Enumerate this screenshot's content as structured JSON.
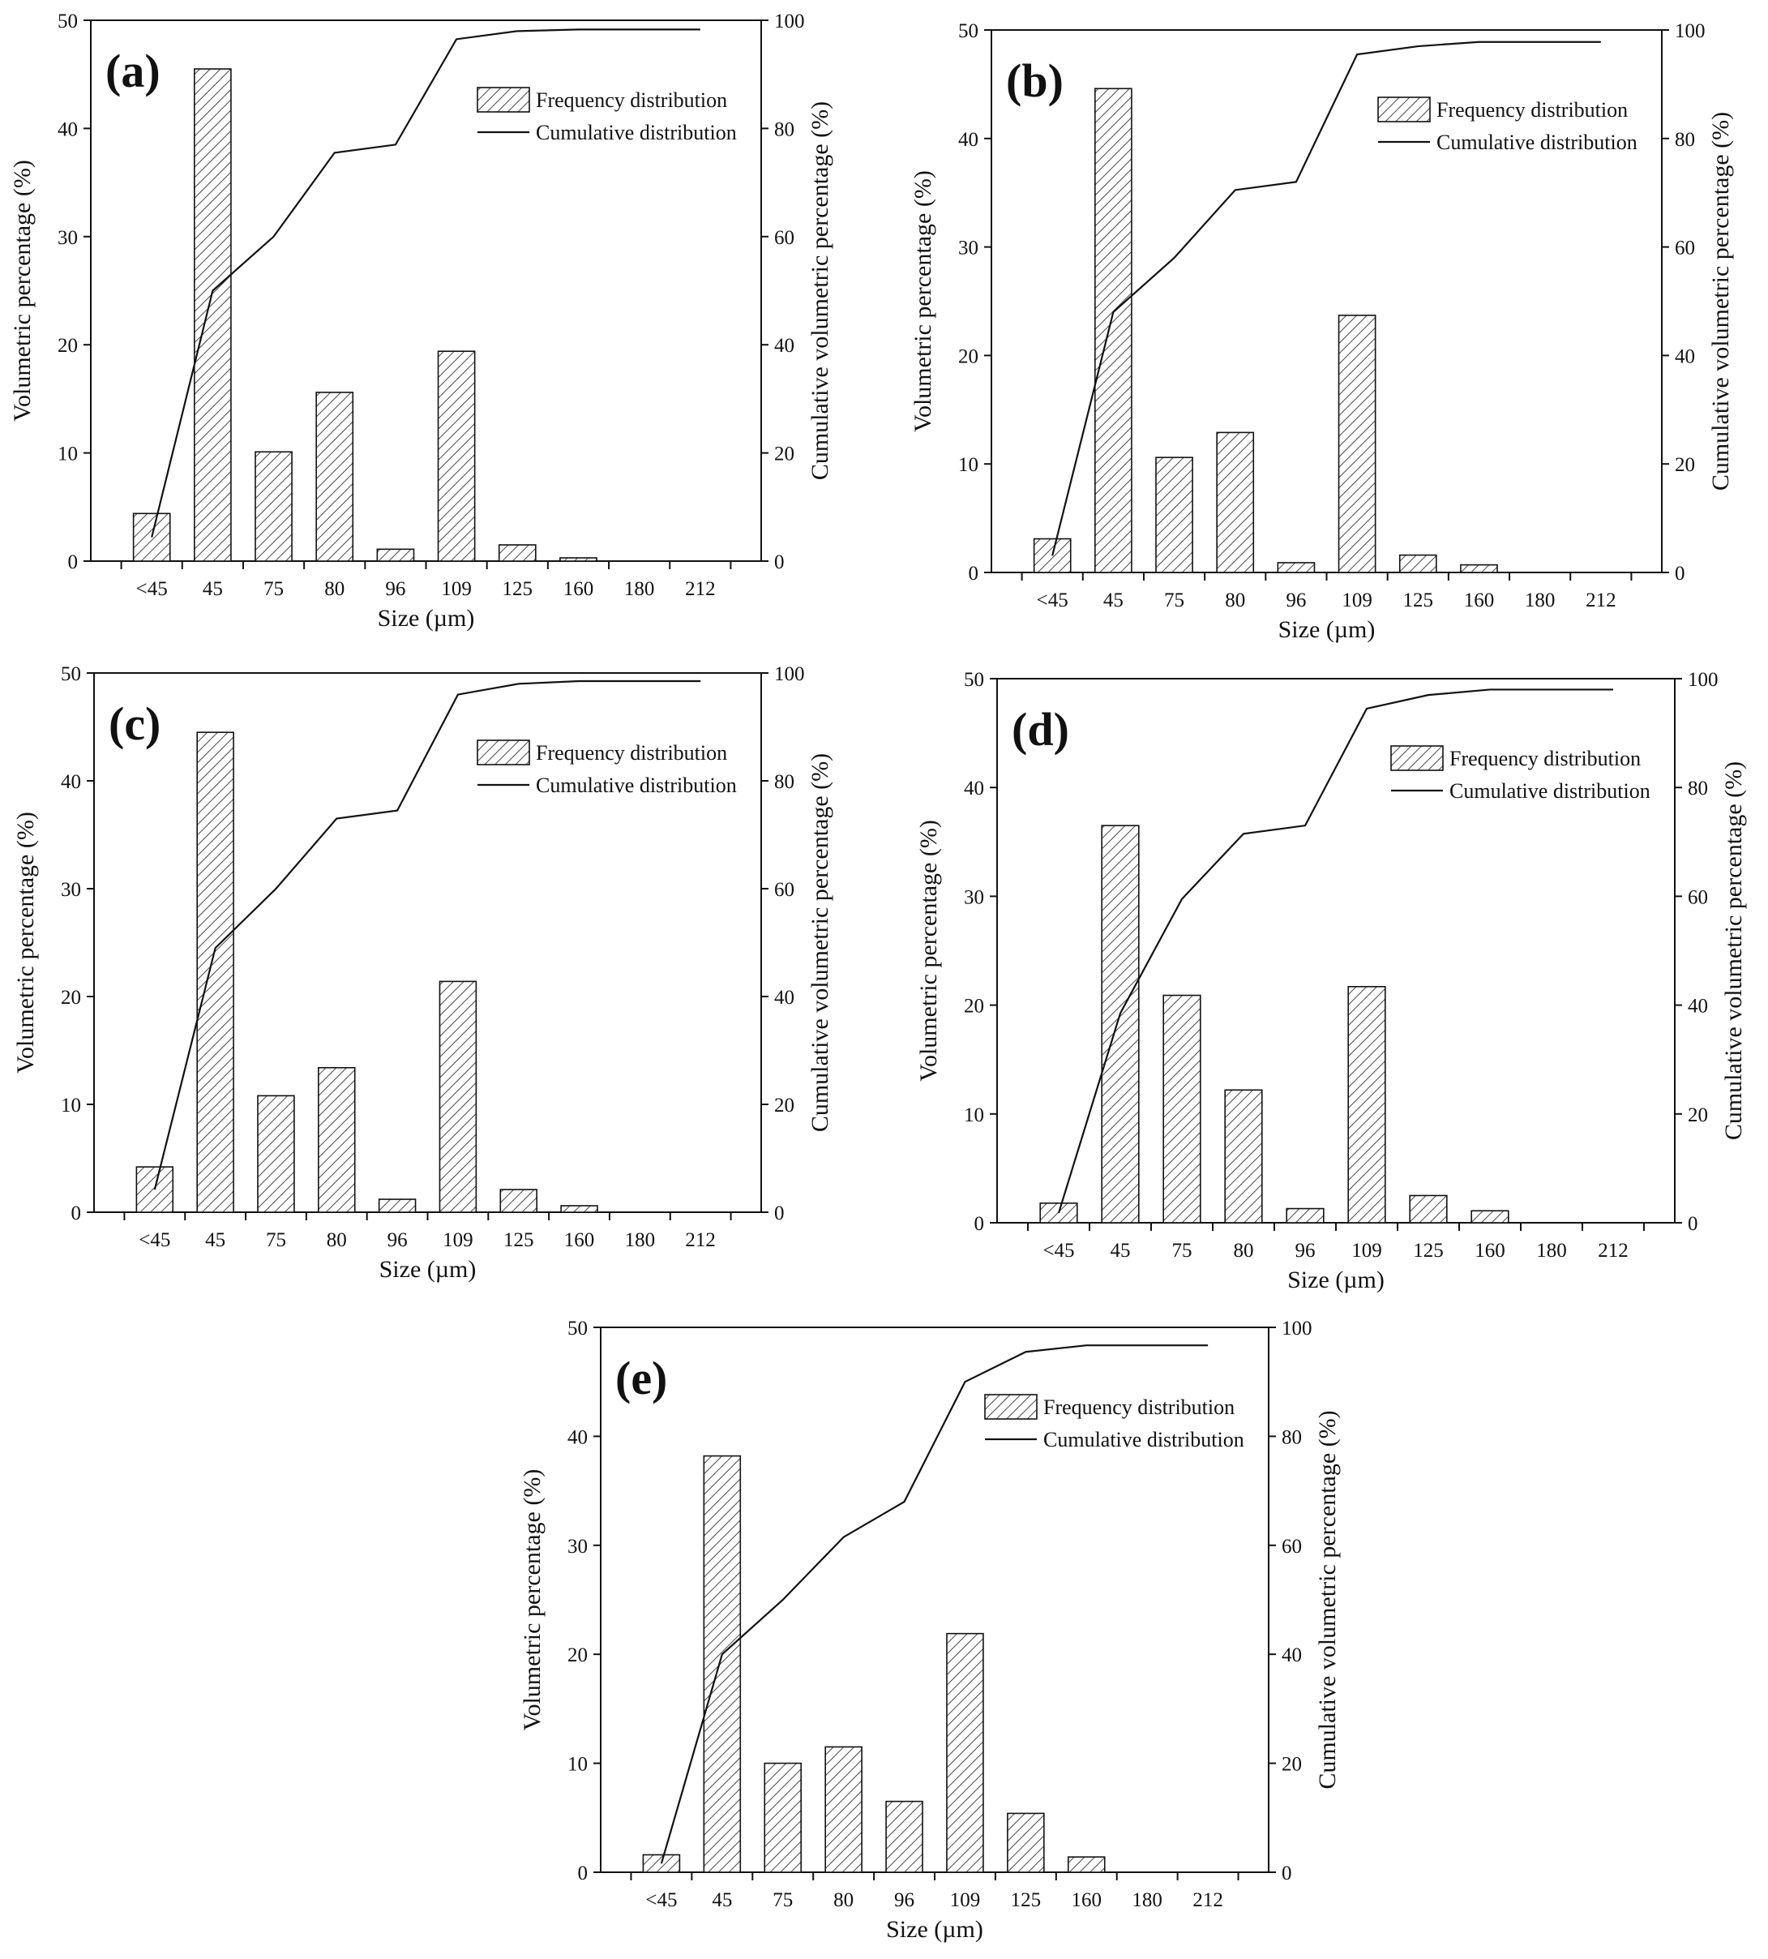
{
  "figure": {
    "bar_series_name": "Frequency distribution",
    "line_series_name": "Cumulative distribution",
    "xlabel": "Size (µm)",
    "ylabel": "Volumetric percentage (%)",
    "y2label": "Cumulative volumetric percentage (%)",
    "colors": {
      "ink": "#111111",
      "background": "#ffffff"
    }
  },
  "chart_data": [
    {
      "type": "bar",
      "panel_label": "(a)",
      "categories": [
        "<45",
        "45",
        "75",
        "80",
        "96",
        "109",
        "125",
        "160",
        "180",
        "212"
      ],
      "series": [
        {
          "name": "Frequency distribution",
          "type": "bar",
          "axis": "left",
          "values": [
            4.4,
            45.5,
            10.1,
            15.6,
            1.1,
            19.4,
            1.5,
            0.3,
            0,
            0
          ]
        },
        {
          "name": "Cumulative distribution",
          "type": "line",
          "axis": "right",
          "values": [
            4.4,
            50,
            60,
            75.5,
            77,
            96.5,
            98,
            98.3,
            98.3,
            98.3
          ]
        }
      ],
      "xlabel": "Size (µm)",
      "ylabel": "Volumetric percentage (%)",
      "y2label": "Cumulative volumetric percentage (%)",
      "ylim": [
        0,
        50
      ],
      "y2lim": [
        0,
        100
      ],
      "yticks": [
        0,
        10,
        20,
        30,
        40,
        50
      ],
      "y2ticks": [
        0,
        20,
        40,
        60,
        80,
        100
      ],
      "legend": "top-right"
    },
    {
      "type": "bar",
      "panel_label": "(b)",
      "categories": [
        "<45",
        "45",
        "75",
        "80",
        "96",
        "109",
        "125",
        "160",
        "180",
        "212"
      ],
      "series": [
        {
          "name": "Frequency distribution",
          "type": "bar",
          "axis": "left",
          "values": [
            3.1,
            44.6,
            10.6,
            12.9,
            0.9,
            23.7,
            1.6,
            0.7,
            0,
            0
          ]
        },
        {
          "name": "Cumulative distribution",
          "type": "line",
          "axis": "right",
          "values": [
            3.1,
            48,
            58,
            70.5,
            72,
            95.5,
            97,
            97.8,
            97.8,
            97.8
          ]
        }
      ],
      "xlabel": "Size (µm)",
      "ylabel": "Volumetric percentage (%)",
      "y2label": "Cumulative volumetric percentage (%)",
      "ylim": [
        0,
        50
      ],
      "y2lim": [
        0,
        100
      ],
      "yticks": [
        0,
        10,
        20,
        30,
        40,
        50
      ],
      "y2ticks": [
        0,
        20,
        40,
        60,
        80,
        100
      ],
      "legend": "top-right"
    },
    {
      "type": "bar",
      "panel_label": "(c)",
      "categories": [
        "<45",
        "45",
        "75",
        "80",
        "96",
        "109",
        "125",
        "160",
        "180",
        "212"
      ],
      "series": [
        {
          "name": "Frequency distribution",
          "type": "bar",
          "axis": "left",
          "values": [
            4.2,
            44.5,
            10.8,
            13.4,
            1.2,
            21.4,
            2.1,
            0.6,
            0,
            0
          ]
        },
        {
          "name": "Cumulative distribution",
          "type": "line",
          "axis": "right",
          "values": [
            4.2,
            49,
            60,
            73,
            74.5,
            96,
            98,
            98.5,
            98.5,
            98.5
          ]
        }
      ],
      "xlabel": "Size (µm)",
      "ylabel": "Volumetric percentage (%)",
      "y2label": "Cumulative volumetric percentage (%)",
      "ylim": [
        0,
        50
      ],
      "y2lim": [
        0,
        100
      ],
      "yticks": [
        0,
        10,
        20,
        30,
        40,
        50
      ],
      "y2ticks": [
        0,
        20,
        40,
        60,
        80,
        100
      ],
      "legend": "top-right"
    },
    {
      "type": "bar",
      "panel_label": "(d)",
      "categories": [
        "<45",
        "45",
        "75",
        "80",
        "96",
        "109",
        "125",
        "160",
        "180",
        "212"
      ],
      "series": [
        {
          "name": "Frequency distribution",
          "type": "bar",
          "axis": "left",
          "values": [
            1.8,
            36.5,
            20.9,
            12.2,
            1.3,
            21.7,
            2.5,
            1.1,
            0,
            0
          ]
        },
        {
          "name": "Cumulative distribution",
          "type": "line",
          "axis": "right",
          "values": [
            1.8,
            38.5,
            59.5,
            71.5,
            73,
            94.5,
            97,
            98,
            98,
            98
          ]
        }
      ],
      "xlabel": "Size (µm)",
      "ylabel": "Volumetric percentage (%)",
      "y2label": "Cumulative volumetric percentage (%)",
      "ylim": [
        0,
        50
      ],
      "y2lim": [
        0,
        100
      ],
      "yticks": [
        0,
        10,
        20,
        30,
        40,
        50
      ],
      "y2ticks": [
        0,
        20,
        40,
        60,
        80,
        100
      ],
      "legend": "top-right"
    },
    {
      "type": "bar",
      "panel_label": "(e)",
      "categories": [
        "<45",
        "45",
        "75",
        "80",
        "96",
        "109",
        "125",
        "160",
        "180",
        "212"
      ],
      "series": [
        {
          "name": "Frequency distribution",
          "type": "bar",
          "axis": "left",
          "values": [
            1.6,
            38.2,
            10.0,
            11.5,
            6.5,
            21.9,
            5.4,
            1.4,
            0,
            0
          ]
        },
        {
          "name": "Cumulative distribution",
          "type": "line",
          "axis": "right",
          "values": [
            1.6,
            40,
            50,
            61.5,
            68,
            90,
            95.5,
            96.7,
            96.7,
            96.7
          ]
        }
      ],
      "xlabel": "Size (µm)",
      "ylabel": "Volumetric percentage (%)",
      "y2label": "Cumulative volumetric percentage (%)",
      "ylim": [
        0,
        50
      ],
      "y2lim": [
        0,
        100
      ],
      "yticks": [
        0,
        10,
        20,
        30,
        40,
        50
      ],
      "y2ticks": [
        0,
        20,
        40,
        60,
        80,
        100
      ],
      "legend": "top-right"
    }
  ]
}
